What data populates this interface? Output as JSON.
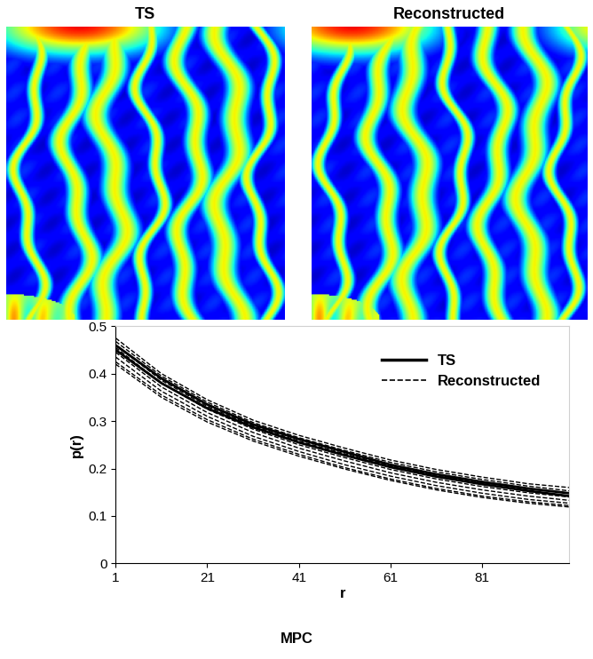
{
  "panels": [
    {
      "title": "TS"
    },
    {
      "title": "Reconstructed"
    }
  ],
  "chart_data": {
    "type": "line",
    "x_label": "r",
    "y_label": "p(r)",
    "x": [
      1,
      11,
      21,
      31,
      41,
      51,
      61,
      71,
      81,
      91,
      100
    ],
    "xlim": [
      1,
      100
    ],
    "xticks": [
      1,
      21,
      41,
      61,
      81
    ],
    "ylim": [
      0,
      0.5
    ],
    "yticks": [
      0,
      0.1,
      0.2,
      0.3,
      0.4,
      0.5
    ],
    "legend": "upper right",
    "series": [
      {
        "name": "TS",
        "color": "#000000",
        "line_style": "solid",
        "values": [
          0.46,
          0.39,
          0.335,
          0.293,
          0.262,
          0.235,
          0.208,
          0.188,
          0.172,
          0.158,
          0.148
        ]
      },
      {
        "name": "TS",
        "color": "#000000",
        "line_style": "solid",
        "values": [
          0.45,
          0.38,
          0.327,
          0.287,
          0.255,
          0.228,
          0.203,
          0.183,
          0.167,
          0.153,
          0.142
        ]
      },
      {
        "name": "Reconstructed",
        "color": "#000000",
        "line_style": "dashed",
        "values": [
          0.475,
          0.4,
          0.345,
          0.302,
          0.27,
          0.243,
          0.218,
          0.198,
          0.182,
          0.168,
          0.16
        ]
      },
      {
        "name": "Reconstructed",
        "color": "#000000",
        "line_style": "dashed",
        "values": [
          0.468,
          0.395,
          0.34,
          0.297,
          0.265,
          0.238,
          0.213,
          0.193,
          0.177,
          0.163,
          0.153
        ]
      },
      {
        "name": "Reconstructed",
        "color": "#000000",
        "line_style": "dashed",
        "values": [
          0.46,
          0.386,
          0.331,
          0.29,
          0.258,
          0.231,
          0.206,
          0.186,
          0.17,
          0.157,
          0.148
        ]
      },
      {
        "name": "Reconstructed",
        "color": "#000000",
        "line_style": "dashed",
        "values": [
          0.455,
          0.38,
          0.325,
          0.283,
          0.25,
          0.223,
          0.198,
          0.178,
          0.162,
          0.149,
          0.14
        ]
      },
      {
        "name": "Reconstructed",
        "color": "#000000",
        "line_style": "dashed",
        "values": [
          0.445,
          0.372,
          0.318,
          0.276,
          0.243,
          0.216,
          0.191,
          0.171,
          0.155,
          0.142,
          0.133
        ]
      },
      {
        "name": "Reconstructed",
        "color": "#000000",
        "line_style": "dashed",
        "values": [
          0.435,
          0.363,
          0.31,
          0.268,
          0.236,
          0.208,
          0.184,
          0.164,
          0.148,
          0.135,
          0.127
        ]
      },
      {
        "name": "Reconstructed",
        "color": "#000000",
        "line_style": "dashed",
        "values": [
          0.425,
          0.355,
          0.303,
          0.262,
          0.23,
          0.202,
          0.178,
          0.158,
          0.142,
          0.13,
          0.122
        ]
      },
      {
        "name": "Reconstructed",
        "color": "#000000",
        "line_style": "dashed",
        "values": [
          0.42,
          0.35,
          0.298,
          0.258,
          0.226,
          0.199,
          0.175,
          0.155,
          0.139,
          0.127,
          0.119
        ]
      }
    ]
  },
  "caption": "MPC"
}
